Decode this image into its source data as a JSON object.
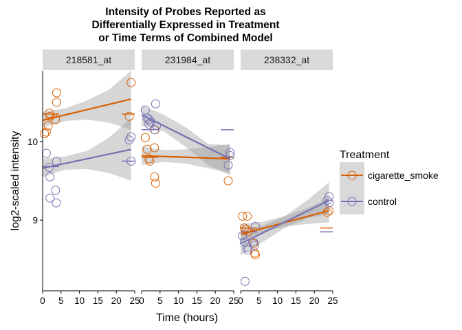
{
  "chart_data": {
    "type": "scatter",
    "title_lines": [
      "Intensity of Probes Reported as",
      "Differentially Expressed in Treatment",
      "or Time Terms of Combined Model"
    ],
    "xlabel": "Time (hours)",
    "ylabel": "log2-scaled intensity",
    "xlim": [
      0,
      25
    ],
    "ylim": [
      8.1,
      10.9
    ],
    "x_ticks": [
      0,
      5,
      10,
      15,
      20,
      25
    ],
    "y_ticks": [
      9,
      10
    ],
    "legend": {
      "title": "Treatment",
      "position": "right",
      "entries": [
        {
          "name": "cigarette_smoke",
          "color": "#d95f02"
        },
        {
          "name": "control",
          "color": "#7570b3"
        }
      ]
    },
    "panels": [
      {
        "label": "218581_at",
        "series": [
          {
            "name": "cigarette_smoke",
            "points": [
              [
                0.5,
                10.1
              ],
              [
                1,
                10.12
              ],
              [
                1.5,
                10.2
              ],
              [
                2,
                10.32
              ],
              [
                1.8,
                10.36
              ],
              [
                3.5,
                10.28
              ],
              [
                3.8,
                10.5
              ],
              [
                3.8,
                10.62
              ],
              [
                23.5,
                10.32
              ],
              [
                24,
                10.75
              ]
            ],
            "means": [
              [
                0,
                4.5,
                10.35
              ],
              [
                21.5,
                25,
                10.35
              ]
            ],
            "fit": [
              [
                0,
                10.27
              ],
              [
                24,
                10.54
              ]
            ],
            "ci_low": [
              [
                0,
                10.18
              ],
              [
                6,
                10.26
              ],
              [
                12,
                10.28
              ],
              [
                18,
                10.24
              ],
              [
                24,
                10.15
              ]
            ],
            "ci_high": [
              [
                0,
                10.38
              ],
              [
                6,
                10.42
              ],
              [
                12,
                10.52
              ],
              [
                18,
                10.66
              ],
              [
                24,
                10.9
              ]
            ]
          },
          {
            "name": "control",
            "points": [
              [
                1,
                9.85
              ],
              [
                1.8,
                9.67
              ],
              [
                2,
                9.55
              ],
              [
                2,
                9.28
              ],
              [
                3.5,
                9.38
              ],
              [
                3.8,
                9.75
              ],
              [
                3.7,
                9.22
              ],
              [
                23.5,
                10.02
              ],
              [
                24,
                10.06
              ],
              [
                24,
                9.75
              ]
            ],
            "means": [
              [
                0,
                4.5,
                9.68
              ],
              [
                21.5,
                25,
                9.75
              ]
            ],
            "fit": [
              [
                0,
                9.66
              ],
              [
                24,
                9.9
              ]
            ],
            "ci_low": [
              [
                0,
                9.55
              ],
              [
                6,
                9.64
              ],
              [
                12,
                9.65
              ],
              [
                18,
                9.6
              ],
              [
                24,
                9.5
              ]
            ],
            "ci_high": [
              [
                0,
                9.78
              ],
              [
                6,
                9.81
              ],
              [
                12,
                9.88
              ],
              [
                18,
                10.05
              ],
              [
                24,
                10.3
              ]
            ]
          }
        ]
      },
      {
        "label": "231984_at",
        "series": [
          {
            "name": "cigarette_smoke",
            "points": [
              [
                1,
                10.05
              ],
              [
                1.5,
                9.9
              ],
              [
                2,
                9.78
              ],
              [
                2.2,
                9.75
              ],
              [
                3.5,
                9.92
              ],
              [
                3.5,
                9.55
              ],
              [
                3.8,
                9.47
              ],
              [
                3.6,
                10.15
              ],
              [
                23.5,
                9.5
              ]
            ],
            "means": [
              [
                0,
                4.5,
                9.8
              ],
              [
                21.5,
                25,
                9.8
              ]
            ],
            "fit": [
              [
                0,
                9.82
              ],
              [
                24,
                9.78
              ]
            ],
            "ci_low": [
              [
                0,
                9.7
              ],
              [
                6,
                9.74
              ],
              [
                12,
                9.72
              ],
              [
                18,
                9.66
              ],
              [
                24,
                9.6
              ]
            ],
            "ci_high": [
              [
                0,
                9.94
              ],
              [
                6,
                9.89
              ],
              [
                12,
                9.9
              ],
              [
                18,
                9.93
              ],
              [
                24,
                9.97
              ]
            ]
          },
          {
            "name": "control",
            "points": [
              [
                1,
                10.4
              ],
              [
                1.5,
                10.3
              ],
              [
                2,
                10.28
              ],
              [
                2,
                10.22
              ],
              [
                2.5,
                10.25
              ],
              [
                3.5,
                10.15
              ],
              [
                3.8,
                10.48
              ],
              [
                4,
                10.2
              ],
              [
                23.5,
                9.7
              ],
              [
                24,
                9.82
              ],
              [
                24,
                9.86
              ]
            ],
            "means": [
              [
                0,
                4.5,
                10.15
              ],
              [
                21.5,
                25,
                10.15
              ]
            ],
            "fit": [
              [
                0,
                10.34
              ],
              [
                24,
                9.78
              ]
            ],
            "ci_low": [
              [
                0,
                10.2
              ],
              [
                6,
                10.13
              ],
              [
                12,
                9.93
              ],
              [
                18,
                9.7
              ],
              [
                24,
                9.57
              ]
            ],
            "ci_high": [
              [
                0,
                10.46
              ],
              [
                6,
                10.34
              ],
              [
                12,
                10.18
              ],
              [
                18,
                9.97
              ],
              [
                24,
                9.95
              ]
            ]
          }
        ]
      },
      {
        "label": "238332_at",
        "series": [
          {
            "name": "cigarette_smoke",
            "points": [
              [
                0.5,
                9.05
              ],
              [
                1,
                8.9
              ],
              [
                1.5,
                8.88
              ],
              [
                1.8,
                9.05
              ],
              [
                2,
                8.85
              ],
              [
                3.5,
                8.7
              ],
              [
                3.8,
                8.58
              ],
              [
                4,
                8.56
              ],
              [
                23.5,
                9.1
              ],
              [
                24,
                9.12
              ]
            ],
            "means": [
              [
                0,
                4.5,
                8.9
              ],
              [
                21.5,
                25,
                8.9
              ]
            ],
            "fit": [
              [
                0,
                8.82
              ],
              [
                24,
                9.12
              ]
            ],
            "ci_low": [
              [
                0,
                8.72
              ],
              [
                6,
                8.85
              ],
              [
                12,
                8.92
              ],
              [
                18,
                8.95
              ],
              [
                24,
                8.97
              ]
            ],
            "ci_high": [
              [
                0,
                8.95
              ],
              [
                6,
                8.98
              ],
              [
                12,
                9.05
              ],
              [
                18,
                9.15
              ],
              [
                24,
                9.28
              ]
            ]
          },
          {
            "name": "control",
            "points": [
              [
                0.5,
                8.8
              ],
              [
                1,
                8.72
              ],
              [
                1.2,
                8.22
              ],
              [
                1.8,
                8.65
              ],
              [
                2,
                8.62
              ],
              [
                3.5,
                8.72
              ],
              [
                3.8,
                8.68
              ],
              [
                4,
                8.92
              ],
              [
                23.5,
                9.25
              ],
              [
                24,
                9.3
              ],
              [
                24,
                9.22
              ]
            ],
            "means": [
              [
                0,
                4.5,
                8.85
              ],
              [
                21.5,
                25,
                8.85
              ]
            ],
            "fit": [
              [
                0,
                8.7
              ],
              [
                24,
                9.25
              ]
            ],
            "ci_low": [
              [
                0,
                8.55
              ],
              [
                6,
                8.72
              ],
              [
                12,
                8.9
              ],
              [
                18,
                9.02
              ],
              [
                24,
                9.08
              ]
            ],
            "ci_high": [
              [
                0,
                8.85
              ],
              [
                6,
                8.93
              ],
              [
                12,
                9.05
              ],
              [
                18,
                9.25
              ],
              [
                24,
                9.48
              ]
            ]
          }
        ]
      }
    ]
  }
}
